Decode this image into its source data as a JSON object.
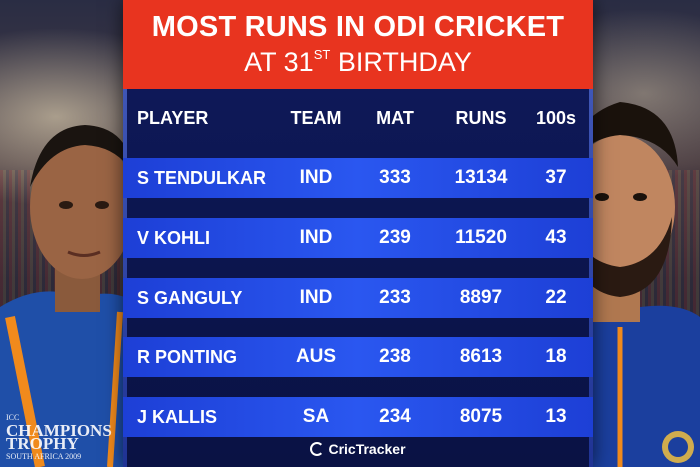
{
  "title": {
    "line1": "MOST RUNS IN ODI CRICKET",
    "line2_prefix": "AT 31",
    "line2_sup": "ST",
    "line2_suffix": " BIRTHDAY"
  },
  "table": {
    "headers": [
      "PLAYER",
      "TEAM",
      "MAT",
      "RUNS",
      "100s"
    ],
    "rows": [
      [
        "S TENDULKAR",
        "IND",
        "333",
        "13134",
        "37"
      ],
      [
        "V KOHLI",
        "IND",
        "239",
        "11520",
        "43"
      ],
      [
        "S GANGULY",
        "IND",
        "233",
        "8897",
        "22"
      ],
      [
        "R PONTING",
        "AUS",
        "238",
        "8613",
        "18"
      ],
      [
        "J KALLIS",
        "SA",
        "234",
        "8075",
        "13"
      ]
    ]
  },
  "footer": {
    "brand": "CricTracker"
  },
  "left_jersey": {
    "line1": "ICC",
    "line2": "CHAMPIONS",
    "line3": "TROPHY",
    "line4": "SOUTH AFRICA 2009"
  },
  "colors": {
    "title_bg": "#e8341f",
    "panel_bg": "#0c1650",
    "row_bg": "#2a57f0",
    "text": "#ffffff"
  }
}
